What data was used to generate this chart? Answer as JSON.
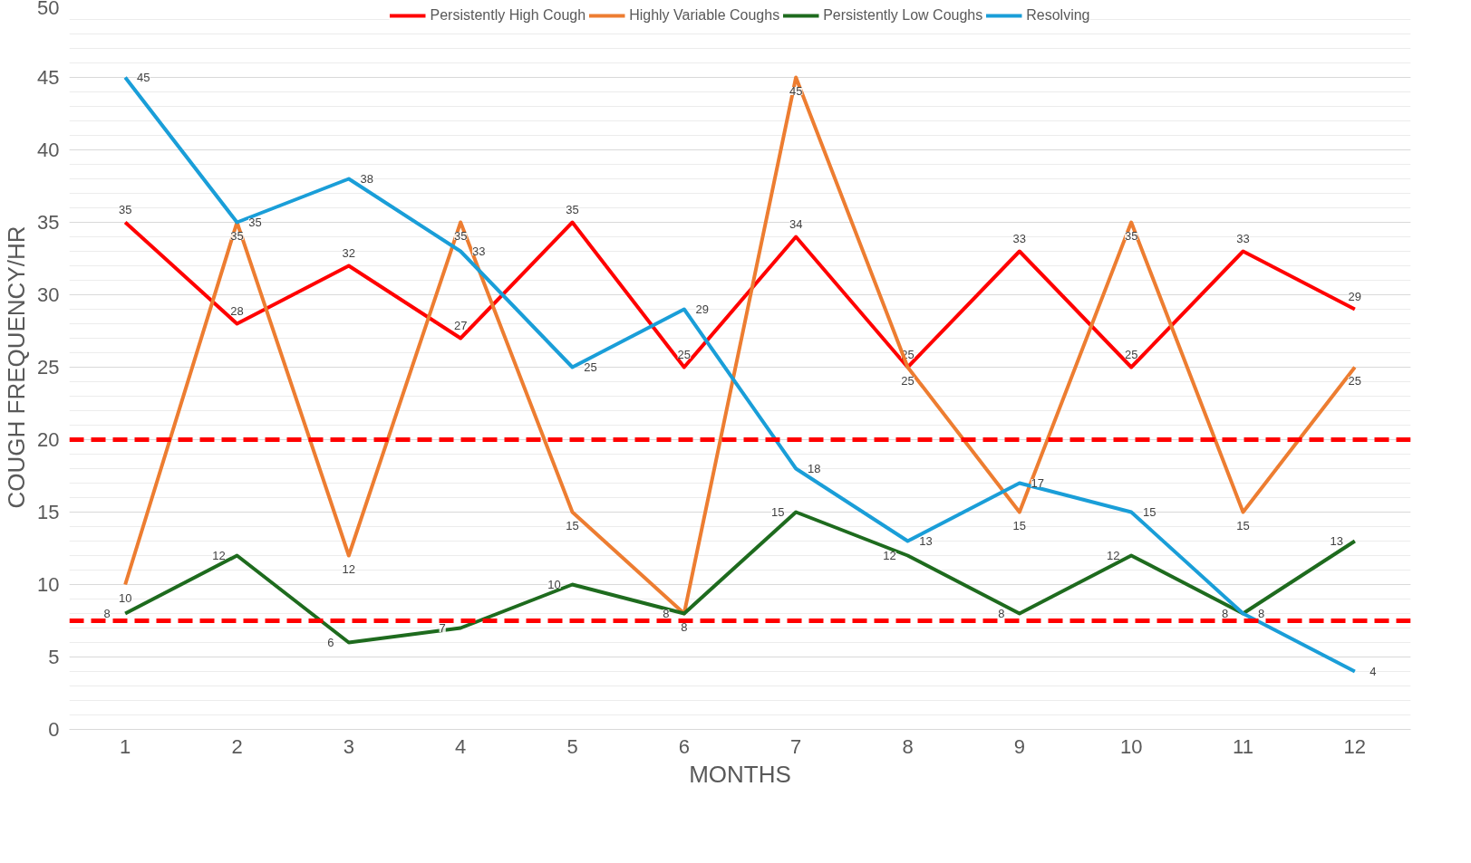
{
  "chart_data": {
    "type": "line",
    "xlabel": "MONTHS",
    "ylabel": "COUGH FREQUENCY/HR",
    "categories": [
      "1",
      "2",
      "3",
      "4",
      "5",
      "6",
      "7",
      "8",
      "9",
      "10",
      "11",
      "12"
    ],
    "series": [
      {
        "name": "Persistently High Cough",
        "color": "#ff0000",
        "values": [
          35,
          28,
          32,
          27,
          35,
          25,
          34,
          25,
          33,
          25,
          33,
          29
        ]
      },
      {
        "name": "Highly Variable Coughs",
        "color": "#ed7d31",
        "values": [
          10,
          35,
          12,
          35,
          15,
          8,
          45,
          25,
          15,
          35,
          15,
          25
        ]
      },
      {
        "name": "Persistently Low Coughs",
        "color": "#1e6b1e",
        "values": [
          8,
          12,
          6,
          7,
          10,
          8,
          15,
          12,
          8,
          12,
          8,
          13
        ]
      },
      {
        "name": "Resolving",
        "color": "#1a9ed8",
        "values": [
          45,
          35,
          38,
          33,
          25,
          29,
          18,
          13,
          17,
          15,
          8,
          4
        ]
      }
    ],
    "ylim": [
      0,
      50
    ],
    "yticks": [
      0,
      5,
      10,
      15,
      20,
      25,
      30,
      35,
      40,
      45,
      50
    ],
    "ref_lines": [
      {
        "axis": "y",
        "value": 20,
        "color": "#ff0000",
        "line_style": "dashed"
      },
      {
        "axis": "y",
        "value": 7.5,
        "color": "#ff0000",
        "line_style": "dashed"
      }
    ],
    "data_labels": true,
    "grid": "y",
    "legend": "top",
    "marker": "none",
    "line_style": "solid"
  }
}
